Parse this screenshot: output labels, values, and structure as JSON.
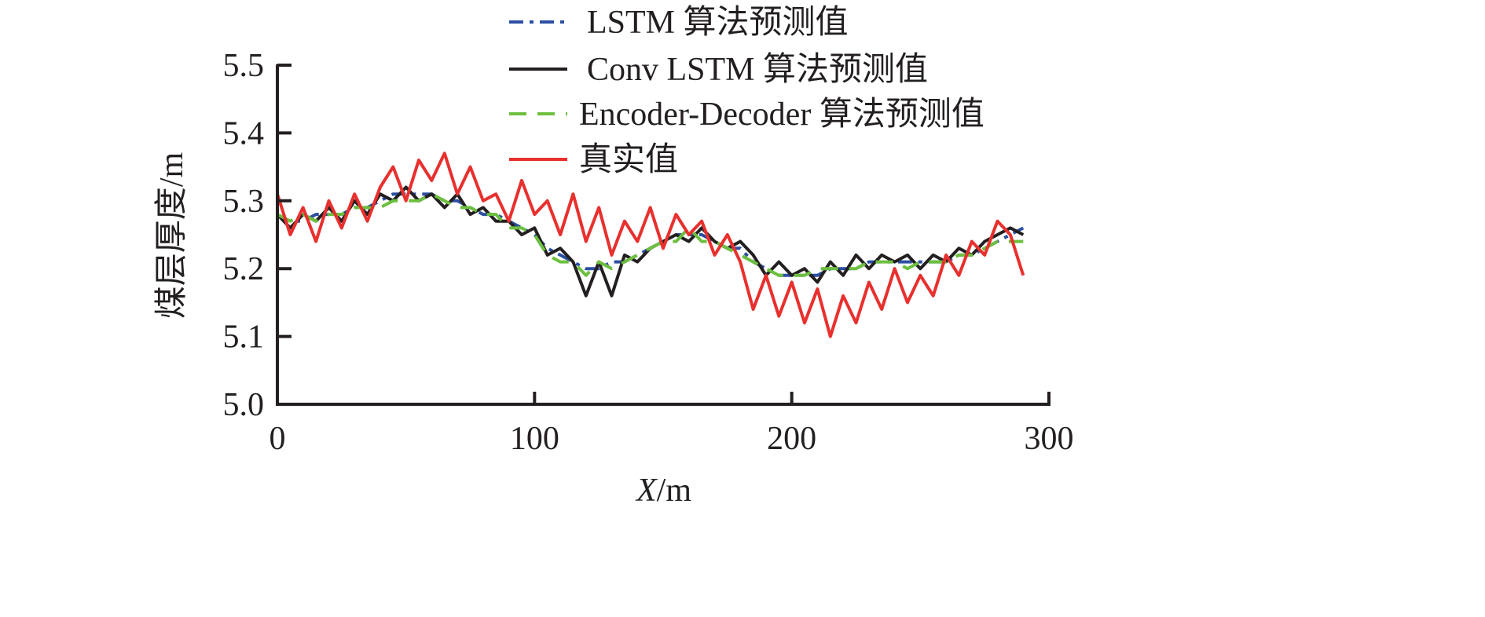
{
  "chart_data": {
    "type": "line",
    "title": "",
    "xlabel_italic": "X",
    "xlabel_unit": "/m",
    "ylabel": "煤层厚度/m",
    "xlim": [
      0,
      300
    ],
    "ylim": [
      5.0,
      5.5
    ],
    "xticks": [
      "0",
      "100",
      "200",
      "300"
    ],
    "xtick_values": [
      0,
      100,
      200,
      300
    ],
    "yticks": [
      "5.0",
      "5.1",
      "5.2",
      "5.3",
      "5.4",
      "5.5"
    ],
    "ytick_values": [
      5.0,
      5.1,
      5.2,
      5.3,
      5.4,
      5.5
    ],
    "grid": false,
    "legend_placement": "top",
    "x_start": 0,
    "x_step": 5,
    "series": [
      {
        "name": "LSTM 算法预测值",
        "color": "#2b4fa3",
        "dash": "dashdot",
        "values": [
          5.28,
          5.27,
          5.27,
          5.28,
          5.28,
          5.28,
          5.29,
          5.29,
          5.3,
          5.31,
          5.31,
          5.31,
          5.31,
          5.3,
          5.3,
          5.29,
          5.28,
          5.28,
          5.27,
          5.26,
          5.25,
          5.23,
          5.22,
          5.21,
          5.2,
          5.2,
          5.21,
          5.21,
          5.22,
          5.23,
          5.24,
          5.25,
          5.25,
          5.25,
          5.24,
          5.23,
          5.23,
          5.21,
          5.2,
          5.19,
          5.19,
          5.19,
          5.19,
          5.2,
          5.2,
          5.2,
          5.21,
          5.21,
          5.21,
          5.21,
          5.21,
          5.21,
          5.21,
          5.22,
          5.22,
          5.23,
          5.24,
          5.25,
          5.26
        ]
      },
      {
        "name": "Conv LSTM 算法预测值",
        "color": "#231f20",
        "dash": "solid",
        "values": [
          5.28,
          5.26,
          5.28,
          5.27,
          5.29,
          5.27,
          5.3,
          5.28,
          5.31,
          5.3,
          5.32,
          5.3,
          5.31,
          5.29,
          5.31,
          5.28,
          5.29,
          5.27,
          5.27,
          5.25,
          5.26,
          5.22,
          5.23,
          5.21,
          5.16,
          5.21,
          5.16,
          5.22,
          5.21,
          5.23,
          5.24,
          5.25,
          5.24,
          5.26,
          5.24,
          5.23,
          5.24,
          5.22,
          5.19,
          5.21,
          5.19,
          5.2,
          5.18,
          5.21,
          5.19,
          5.22,
          5.2,
          5.22,
          5.21,
          5.22,
          5.2,
          5.22,
          5.21,
          5.23,
          5.22,
          5.24,
          5.25,
          5.26,
          5.25
        ]
      },
      {
        "name": "Encoder-Decoder 算法预测值",
        "color": "#6cbf3f",
        "dash": "dash",
        "values": [
          5.28,
          5.27,
          5.28,
          5.27,
          5.28,
          5.28,
          5.29,
          5.29,
          5.29,
          5.3,
          5.3,
          5.3,
          5.31,
          5.3,
          5.29,
          5.29,
          5.28,
          5.28,
          5.26,
          5.26,
          5.25,
          5.22,
          5.21,
          5.21,
          5.19,
          5.21,
          5.2,
          5.21,
          5.22,
          5.23,
          5.24,
          5.24,
          5.26,
          5.24,
          5.24,
          5.23,
          5.22,
          5.21,
          5.2,
          5.19,
          5.19,
          5.19,
          5.2,
          5.2,
          5.2,
          5.2,
          5.21,
          5.21,
          5.21,
          5.2,
          5.21,
          5.21,
          5.21,
          5.22,
          5.22,
          5.23,
          5.24,
          5.24,
          5.24
        ]
      },
      {
        "name": "真实值",
        "color": "#e8302e",
        "dash": "solid",
        "values": [
          5.31,
          5.25,
          5.29,
          5.24,
          5.3,
          5.26,
          5.31,
          5.27,
          5.32,
          5.35,
          5.3,
          5.36,
          5.33,
          5.37,
          5.31,
          5.35,
          5.3,
          5.31,
          5.27,
          5.33,
          5.28,
          5.3,
          5.25,
          5.31,
          5.24,
          5.29,
          5.22,
          5.27,
          5.24,
          5.29,
          5.23,
          5.28,
          5.25,
          5.27,
          5.22,
          5.25,
          5.21,
          5.14,
          5.19,
          5.13,
          5.18,
          5.12,
          5.17,
          5.1,
          5.16,
          5.12,
          5.18,
          5.14,
          5.2,
          5.15,
          5.19,
          5.16,
          5.22,
          5.19,
          5.24,
          5.22,
          5.27,
          5.25,
          5.19
        ]
      }
    ]
  }
}
